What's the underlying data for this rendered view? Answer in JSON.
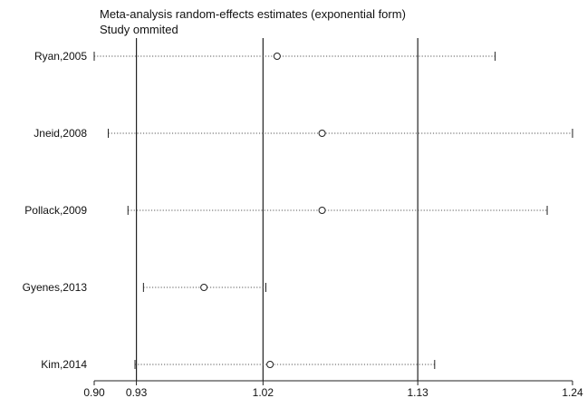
{
  "chart_data": {
    "type": "scatter",
    "title": "Meta-analysis random-effects estimates (exponential form)",
    "subtitle": "Study ommited",
    "xlim": [
      0.9,
      1.24
    ],
    "xticks": [
      0.9,
      0.93,
      1.02,
      1.13,
      1.24
    ],
    "xtick_labels": [
      "0.90",
      "0.93",
      "1.02",
      "1.13",
      "1.24"
    ],
    "reference_lines": [
      0.93,
      1.02,
      1.13
    ],
    "grid": false,
    "studies": [
      {
        "label": "Ryan,2005",
        "estimate": 1.03,
        "lower": 0.9,
        "upper": 1.185
      },
      {
        "label": "Jneid,2008",
        "estimate": 1.062,
        "lower": 0.91,
        "upper": 1.24
      },
      {
        "label": "Pollack,2009",
        "estimate": 1.062,
        "lower": 0.924,
        "upper": 1.222
      },
      {
        "label": "Gyenes,2013",
        "estimate": 0.978,
        "lower": 0.935,
        "upper": 1.022
      },
      {
        "label": "Kim,2014",
        "estimate": 1.025,
        "lower": 0.929,
        "upper": 1.142
      }
    ]
  }
}
